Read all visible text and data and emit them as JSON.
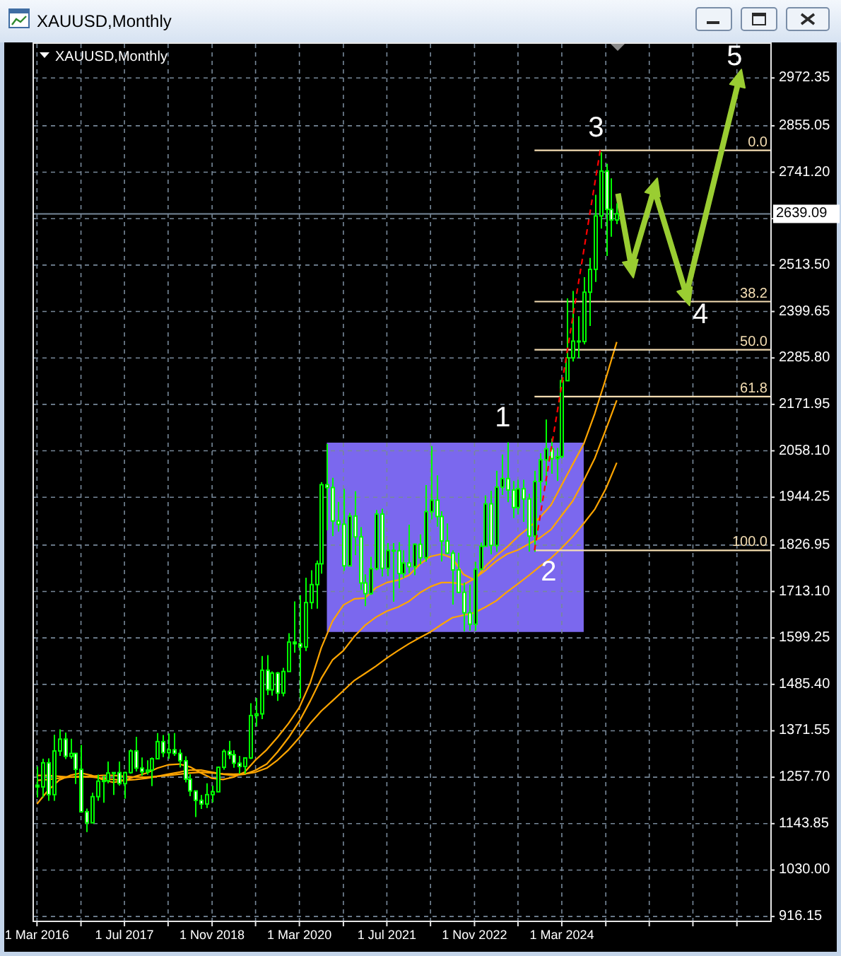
{
  "chart_data": {
    "type": "candlestick",
    "title": "XAUUSD,Monthly",
    "subtitle": "XAUUSD,Monthly",
    "x": [
      "2016-03",
      "2016-04",
      "2016-05",
      "2016-06",
      "2016-07",
      "2016-08",
      "2016-09",
      "2016-10",
      "2016-11",
      "2016-12",
      "2017-01",
      "2017-02",
      "2017-03",
      "2017-04",
      "2017-05",
      "2017-06",
      "2017-07",
      "2017-08",
      "2017-09",
      "2017-10",
      "2017-11",
      "2017-12",
      "2018-01",
      "2018-02",
      "2018-03",
      "2018-04",
      "2018-05",
      "2018-06",
      "2018-07",
      "2018-08",
      "2018-09",
      "2018-10",
      "2018-11",
      "2018-12",
      "2019-01",
      "2019-02",
      "2019-03",
      "2019-04",
      "2019-05",
      "2019-06",
      "2019-07",
      "2019-08",
      "2019-09",
      "2019-10",
      "2019-11",
      "2019-12",
      "2020-01",
      "2020-02",
      "2020-03",
      "2020-04",
      "2020-05",
      "2020-06",
      "2020-07",
      "2020-08",
      "2020-09",
      "2020-10",
      "2020-11",
      "2020-12",
      "2021-01",
      "2021-02",
      "2021-03",
      "2021-04",
      "2021-05",
      "2021-06",
      "2021-07",
      "2021-08",
      "2021-09",
      "2021-10",
      "2021-11",
      "2021-12",
      "2022-01",
      "2022-02",
      "2022-03",
      "2022-04",
      "2022-05",
      "2022-06",
      "2022-07",
      "2022-08",
      "2022-09",
      "2022-10",
      "2022-11",
      "2022-12",
      "2023-01",
      "2023-02",
      "2023-03",
      "2023-04",
      "2023-05",
      "2023-06",
      "2023-07",
      "2023-08",
      "2023-09",
      "2023-10",
      "2023-11",
      "2023-12",
      "2024-01",
      "2024-02",
      "2024-03",
      "2024-04",
      "2024-05",
      "2024-06",
      "2024-07",
      "2024-08",
      "2024-09",
      "2024-10",
      "2024-11",
      "2024-12",
      "2025-01"
    ],
    "ohlc": [
      [
        1238,
        1284,
        1208,
        1234
      ],
      [
        1234,
        1303,
        1208,
        1293
      ],
      [
        1293,
        1304,
        1200,
        1215
      ],
      [
        1215,
        1362,
        1200,
        1322
      ],
      [
        1322,
        1375,
        1310,
        1351
      ],
      [
        1351,
        1367,
        1302,
        1309
      ],
      [
        1309,
        1352,
        1303,
        1316
      ],
      [
        1316,
        1317,
        1241,
        1277
      ],
      [
        1277,
        1337,
        1171,
        1173
      ],
      [
        1173,
        1181,
        1123,
        1146
      ],
      [
        1146,
        1220,
        1146,
        1210
      ],
      [
        1210,
        1264,
        1200,
        1248
      ],
      [
        1248,
        1262,
        1195,
        1249
      ],
      [
        1249,
        1296,
        1243,
        1268
      ],
      [
        1268,
        1270,
        1214,
        1269
      ],
      [
        1269,
        1296,
        1237,
        1242
      ],
      [
        1242,
        1271,
        1205,
        1269
      ],
      [
        1269,
        1326,
        1266,
        1322
      ],
      [
        1322,
        1357,
        1272,
        1280
      ],
      [
        1280,
        1306,
        1261,
        1271
      ],
      [
        1271,
        1299,
        1264,
        1275
      ],
      [
        1275,
        1306,
        1236,
        1303
      ],
      [
        1303,
        1366,
        1302,
        1345
      ],
      [
        1345,
        1361,
        1307,
        1318
      ],
      [
        1318,
        1365,
        1303,
        1325
      ],
      [
        1325,
        1366,
        1310,
        1316
      ],
      [
        1316,
        1326,
        1282,
        1298
      ],
      [
        1298,
        1309,
        1245,
        1253
      ],
      [
        1253,
        1265,
        1211,
        1224
      ],
      [
        1224,
        1224,
        1160,
        1201
      ],
      [
        1201,
        1214,
        1180,
        1192
      ],
      [
        1192,
        1243,
        1182,
        1215
      ],
      [
        1215,
        1237,
        1196,
        1222
      ],
      [
        1222,
        1284,
        1221,
        1282
      ],
      [
        1282,
        1326,
        1276,
        1321
      ],
      [
        1321,
        1347,
        1302,
        1313
      ],
      [
        1313,
        1324,
        1281,
        1292
      ],
      [
        1292,
        1310,
        1266,
        1284
      ],
      [
        1284,
        1306,
        1266,
        1305
      ],
      [
        1305,
        1439,
        1302,
        1409
      ],
      [
        1409,
        1452,
        1382,
        1413
      ],
      [
        1413,
        1555,
        1400,
        1520
      ],
      [
        1520,
        1557,
        1459,
        1472
      ],
      [
        1472,
        1517,
        1458,
        1513
      ],
      [
        1513,
        1516,
        1445,
        1464
      ],
      [
        1464,
        1526,
        1456,
        1517
      ],
      [
        1517,
        1611,
        1517,
        1589
      ],
      [
        1589,
        1689,
        1563,
        1585
      ],
      [
        1585,
        1704,
        1451,
        1577
      ],
      [
        1577,
        1747,
        1567,
        1686
      ],
      [
        1686,
        1765,
        1670,
        1730
      ],
      [
        1730,
        1789,
        1671,
        1781
      ],
      [
        1781,
        1981,
        1757,
        1975
      ],
      [
        1975,
        2075,
        1863,
        1968
      ],
      [
        1968,
        1992,
        1849,
        1886
      ],
      [
        1886,
        1933,
        1860,
        1878
      ],
      [
        1878,
        1965,
        1764,
        1776
      ],
      [
        1776,
        1906,
        1775,
        1898
      ],
      [
        1898,
        1959,
        1802,
        1847
      ],
      [
        1847,
        1871,
        1717,
        1734
      ],
      [
        1734,
        1755,
        1677,
        1708
      ],
      [
        1708,
        1798,
        1705,
        1769
      ],
      [
        1769,
        1913,
        1765,
        1903
      ],
      [
        1903,
        1916,
        1750,
        1770
      ],
      [
        1770,
        1832,
        1751,
        1814
      ],
      [
        1814,
        1832,
        1688,
        1813
      ],
      [
        1813,
        1834,
        1721,
        1757
      ],
      [
        1757,
        1814,
        1746,
        1783
      ],
      [
        1783,
        1877,
        1758,
        1774
      ],
      [
        1774,
        1831,
        1753,
        1829
      ],
      [
        1829,
        1853,
        1780,
        1796
      ],
      [
        1796,
        1974,
        1786,
        1909
      ],
      [
        1909,
        2070,
        1890,
        1937
      ],
      [
        1937,
        1998,
        1872,
        1897
      ],
      [
        1897,
        1910,
        1787,
        1837
      ],
      [
        1837,
        1880,
        1805,
        1807
      ],
      [
        1807,
        1814,
        1681,
        1766
      ],
      [
        1766,
        1808,
        1709,
        1711
      ],
      [
        1711,
        1735,
        1615,
        1661
      ],
      [
        1661,
        1730,
        1617,
        1633
      ],
      [
        1633,
        1786,
        1617,
        1768
      ],
      [
        1768,
        1833,
        1765,
        1824
      ],
      [
        1824,
        1949,
        1824,
        1928
      ],
      [
        1928,
        1960,
        1804,
        1826
      ],
      [
        1826,
        2009,
        1810,
        1969
      ],
      [
        1969,
        2049,
        1950,
        1990
      ],
      [
        1990,
        2079,
        1932,
        1962
      ],
      [
        1962,
        1984,
        1893,
        1919
      ],
      [
        1919,
        1987,
        1902,
        1965
      ],
      [
        1965,
        1987,
        1884,
        1940
      ],
      [
        1940,
        1953,
        1811,
        1849
      ],
      [
        1849,
        2009,
        1810,
        1983
      ],
      [
        1983,
        2052,
        1931,
        2036
      ],
      [
        2036,
        2135,
        1973,
        2063
      ],
      [
        2063,
        2088,
        2002,
        2039
      ],
      [
        2039,
        2065,
        1984,
        2044
      ],
      [
        2044,
        2236,
        2039,
        2230
      ],
      [
        2230,
        2432,
        2229,
        2286
      ],
      [
        2286,
        2450,
        2277,
        2327
      ],
      [
        2327,
        2388,
        2286,
        2326
      ],
      [
        2326,
        2484,
        2319,
        2447
      ],
      [
        2447,
        2531,
        2364,
        2503
      ],
      [
        2503,
        2686,
        2472,
        2634
      ],
      [
        2634,
        2790,
        2603,
        2744
      ],
      [
        2744,
        2762,
        2536,
        2650
      ],
      [
        2650,
        2726,
        2583,
        2624
      ],
      [
        2624,
        2665,
        2614,
        2639.09
      ]
    ],
    "color": "#00ff00",
    "colors": [
      "#ffffff",
      "#000000",
      "#ffffff",
      "#000000",
      "#000000",
      "#ffffff",
      "#000000",
      "#ffffff",
      "#ffffff",
      "#ffffff",
      "#000000",
      "#000000",
      "#000000",
      "#000000",
      "#000000",
      "#ffffff",
      "#000000",
      "#000000",
      "#ffffff",
      "#ffffff",
      "#000000",
      "#000000",
      "#000000",
      "#ffffff",
      "#000000",
      "#ffffff",
      "#ffffff",
      "#ffffff",
      "#ffffff",
      "#ffffff",
      "#ffffff",
      "#000000",
      "#000000",
      "#000000",
      "#000000",
      "#ffffff",
      "#ffffff",
      "#ffffff",
      "#000000",
      "#000000",
      "#000000",
      "#000000",
      "#ffffff",
      "#000000",
      "#ffffff",
      "#000000",
      "#000000",
      "#ffffff",
      "#ffffff",
      "#000000",
      "#000000",
      "#000000",
      "#000000",
      "#ffffff",
      "#ffffff",
      "#ffffff",
      "#ffffff",
      "#000000",
      "#ffffff",
      "#ffffff",
      "#ffffff",
      "#000000",
      "#000000",
      "#ffffff",
      "#000000",
      "#ffffff",
      "#ffffff",
      "#000000",
      "#ffffff",
      "#000000",
      "#ffffff",
      "#000000",
      "#000000",
      "#ffffff",
      "#ffffff",
      "#ffffff",
      "#ffffff",
      "#ffffff",
      "#ffffff",
      "#ffffff",
      "#000000",
      "#000000",
      "#000000",
      "#ffffff",
      "#000000",
      "#000000",
      "#ffffff",
      "#ffffff",
      "#000000",
      "#ffffff",
      "#ffffff",
      "#000000",
      "#000000",
      "#000000",
      "#ffffff",
      "#000000",
      "#000000",
      "#000000",
      "#000000",
      "#ffffff",
      "#000000",
      "#000000",
      "#000000",
      "#000000",
      "#ffffff",
      "#ffffff",
      "#000000"
    ],
    "series": [
      {
        "type": "line",
        "color": "#7b68ee",
        "x": [
          "2020-08",
          "2021-08",
          "2024-07"
        ],
        "values": [
          null,
          null,
          null
        ],
        "lower": [
          1614,
          1614,
          1614
        ],
        "upper": [
          2078,
          2078,
          2078
        ]
      },
      {
        "type": "line",
        "color": "#ffa500",
        "x": [
          "2016-03",
          "2016-05",
          "2016-07",
          "2016-09",
          "2016-11",
          "2017-01",
          "2017-03",
          "2017-05",
          "2017-07",
          "2017-09",
          "2017-11",
          "2018-01",
          "2018-03",
          "2018-05",
          "2018-07",
          "2018-09",
          "2018-11",
          "2019-01",
          "2019-03",
          "2019-05",
          "2019-07",
          "2019-09",
          "2019-11",
          "2020-01",
          "2020-03",
          "2020-05",
          "2020-07",
          "2020-09",
          "2020-11",
          "2021-01",
          "2021-03",
          "2021-05",
          "2021-07",
          "2021-09",
          "2021-11",
          "2022-01",
          "2022-03",
          "2022-05",
          "2022-07",
          "2022-09",
          "2022-11",
          "2023-01",
          "2023-03",
          "2023-05",
          "2023-07",
          "2023-09",
          "2023-11",
          "2024-01",
          "2024-03",
          "2024-05",
          "2024-07",
          "2024-09",
          "2024-11",
          "2025-01"
        ],
        "values": [
          1192,
          1225,
          1250,
          1262,
          1268,
          1262,
          1252,
          1245,
          1250,
          1260,
          1268,
          1280,
          1288,
          1290,
          1283,
          1268,
          1255,
          1252,
          1258,
          1270,
          1300,
          1325,
          1356,
          1390,
          1429,
          1490,
          1575,
          1640,
          1680,
          1695,
          1697,
          1722,
          1735,
          1741,
          1753,
          1780,
          1799,
          1805,
          1795,
          1755,
          1741,
          1775,
          1800,
          1822,
          1848,
          1870,
          1895,
          1925,
          1975,
          2025,
          2075,
          2150,
          2235,
          2325
        ]
      },
      {
        "type": "line",
        "color": "#ffa500",
        "x": [
          "2016-03",
          "2016-05",
          "2016-07",
          "2016-09",
          "2016-11",
          "2017-01",
          "2017-03",
          "2017-05",
          "2017-07",
          "2017-09",
          "2017-11",
          "2018-01",
          "2018-03",
          "2018-05",
          "2018-07",
          "2018-09",
          "2018-11",
          "2019-01",
          "2019-03",
          "2019-05",
          "2019-07",
          "2019-09",
          "2019-11",
          "2020-01",
          "2020-03",
          "2020-05",
          "2020-07",
          "2020-09",
          "2020-11",
          "2021-01",
          "2021-03",
          "2021-05",
          "2021-07",
          "2021-09",
          "2021-11",
          "2022-01",
          "2022-03",
          "2022-05",
          "2022-07",
          "2022-09",
          "2022-11",
          "2023-01",
          "2023-03",
          "2023-05",
          "2023-07",
          "2023-09",
          "2023-11",
          "2024-01",
          "2024-03",
          "2024-05",
          "2024-07",
          "2024-09",
          "2024-11",
          "2025-01"
        ],
        "values": [
          1250,
          1252,
          1255,
          1258,
          1260,
          1258,
          1255,
          1252,
          1250,
          1252,
          1255,
          1260,
          1265,
          1270,
          1275,
          1275,
          1270,
          1265,
          1262,
          1265,
          1275,
          1290,
          1320,
          1355,
          1395,
          1445,
          1500,
          1545,
          1568,
          1603,
          1630,
          1650,
          1665,
          1675,
          1689,
          1710,
          1725,
          1735,
          1735,
          1730,
          1745,
          1765,
          1787,
          1805,
          1815,
          1830,
          1845,
          1865,
          1900,
          1935,
          1985,
          2040,
          2110,
          2182
        ]
      },
      {
        "type": "line",
        "color": "#ffa500",
        "x": [
          "2016-03",
          "2016-05",
          "2016-07",
          "2016-09",
          "2016-11",
          "2017-01",
          "2017-03",
          "2017-05",
          "2017-07",
          "2017-09",
          "2017-11",
          "2018-01",
          "2018-03",
          "2018-05",
          "2018-07",
          "2018-09",
          "2018-11",
          "2019-01",
          "2019-03",
          "2019-05",
          "2019-07",
          "2019-09",
          "2019-11",
          "2020-01",
          "2020-03",
          "2020-05",
          "2020-07",
          "2020-09",
          "2020-11",
          "2021-01",
          "2021-03",
          "2021-05",
          "2021-07",
          "2021-09",
          "2021-11",
          "2022-01",
          "2022-03",
          "2022-05",
          "2022-07",
          "2022-09",
          "2022-11",
          "2023-01",
          "2023-03",
          "2023-05",
          "2023-07",
          "2023-09",
          "2023-11",
          "2024-01",
          "2024-03",
          "2024-05",
          "2024-07",
          "2024-09",
          "2024-11",
          "2025-01"
        ],
        "values": [
          1262,
          1262,
          1260,
          1258,
          1258,
          1260,
          1262,
          1262,
          1260,
          1258,
          1258,
          1260,
          1262,
          1265,
          1268,
          1270,
          1268,
          1266,
          1265,
          1266,
          1270,
          1280,
          1300,
          1325,
          1355,
          1390,
          1420,
          1445,
          1470,
          1495,
          1512,
          1530,
          1550,
          1568,
          1585,
          1600,
          1614,
          1632,
          1649,
          1655,
          1661,
          1675,
          1690,
          1712,
          1732,
          1753,
          1775,
          1795,
          1820,
          1848,
          1880,
          1915,
          1965,
          2029
        ]
      },
      {
        "type": "line",
        "name": "0.0",
        "color": "#f5deb3",
        "x": [
          "2023-10",
          "2027-05-06"
        ],
        "values": [
          2795,
          2795
        ]
      },
      {
        "type": "line",
        "name": "38.2",
        "color": "#f5deb3",
        "x": [
          "2023-10",
          "2027-05-06"
        ],
        "values": [
          2424,
          2424
        ]
      },
      {
        "type": "line",
        "name": "50.0",
        "color": "#f5deb3",
        "x": [
          "2023-10",
          "2027-05-06"
        ],
        "values": [
          2306,
          2306
        ]
      },
      {
        "type": "line",
        "name": "61.8",
        "color": "#f5deb3",
        "x": [
          "2023-10",
          "2027-05-06"
        ],
        "values": [
          2191,
          2191
        ]
      },
      {
        "type": "line",
        "name": "100.0",
        "color": "#f5deb3",
        "x": [
          "2023-10",
          "2027-05-06"
        ],
        "values": [
          1814,
          1814
        ]
      },
      {
        "type": "line",
        "color": "#ff0000",
        "line_style": "dashed",
        "x": [
          "2023-10",
          "2024-10"
        ],
        "values": [
          1814,
          2795
        ]
      },
      {
        "type": "line",
        "color": "#9acd32",
        "marker": "triangle",
        "x": [
          "2025-01-08",
          "2025-03-23",
          "2025-07-28",
          "2026-01-23",
          "2026-11-11"
        ],
        "values": [
          2689,
          2510,
          2700,
          2441,
          2966
        ]
      }
    ],
    "xlim": [
      "2016-02-13",
      "2027-05-06"
    ],
    "ylim": [
      906,
      3056
    ],
    "xticks": [
      {
        "value": "2016-03",
        "label": "1 Mar 2016"
      },
      {
        "value": "2016-11",
        "label": null
      },
      {
        "value": "2017-07",
        "label": "1 Jul 2017"
      },
      {
        "value": "2018-03",
        "label": null
      },
      {
        "value": "2018-11",
        "label": "1 Nov 2018"
      },
      {
        "value": "2019-07",
        "label": null
      },
      {
        "value": "2020-03",
        "label": "1 Mar 2020"
      },
      {
        "value": "2020-11",
        "label": null
      },
      {
        "value": "2021-07",
        "label": "1 Jul 2021"
      },
      {
        "value": "2022-03",
        "label": null
      },
      {
        "value": "2022-11",
        "label": "1 Nov 2022"
      },
      {
        "value": "2023-07",
        "label": null
      },
      {
        "value": "2024-03",
        "label": "1 Mar 2024"
      },
      {
        "value": "2024-11",
        "label": null
      },
      {
        "value": "2025-07",
        "label": null
      },
      {
        "value": "2026-03",
        "label": null
      },
      {
        "value": "2026-11",
        "label": null
      }
    ],
    "yticks": [
      2972.35,
      2855.05,
      {
        "value": 2741.2,
        "label": "2741.20"
      },
      {
        "value": 2627.35,
        "label": null
      },
      {
        "value": 2513.5,
        "label": "2513.50"
      },
      2399.65,
      {
        "value": 2285.8,
        "label": "2285.80"
      },
      2171.95,
      {
        "value": 2058.1,
        "label": "2058.10"
      },
      1944.25,
      1826.95,
      {
        "value": 1713.1,
        "label": "1713.10"
      },
      1599.25,
      {
        "value": 1485.4,
        "label": "1485.40"
      },
      1371.55,
      {
        "value": 1257.7,
        "label": "1257.70"
      },
      1143.85,
      {
        "value": 1030,
        "label": "1030.00"
      },
      916.15
    ],
    "grid": true,
    "ref_lines": [
      {
        "axis": "y",
        "value": 2639.09,
        "label": "2639.09",
        "color": "#778899"
      }
    ],
    "annotations": [
      {
        "text": "1",
        "x": "2023-05",
        "y": 2079
      },
      {
        "text": "2",
        "x": "2023-10",
        "y": 1810
      },
      {
        "text": "3",
        "x": "2024-10",
        "y": 2790
      },
      {
        "text": "4",
        "x": "2026-01-23",
        "y": 2441
      },
      {
        "text": "5",
        "x": "2026-11-11",
        "y": 2966
      }
    ]
  }
}
